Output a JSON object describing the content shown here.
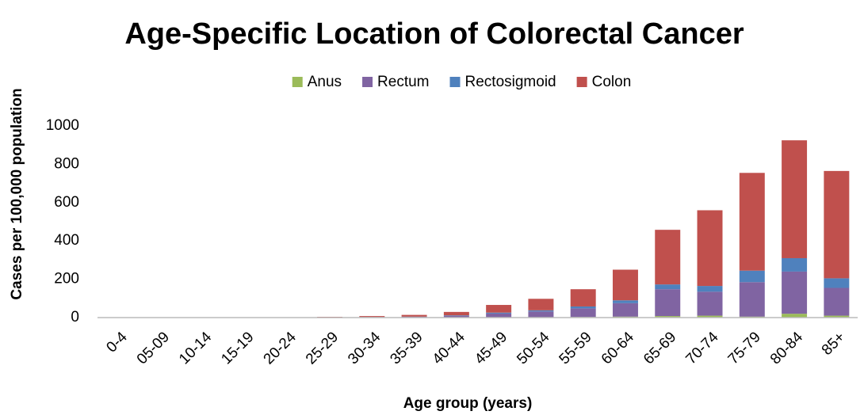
{
  "chart_data": {
    "type": "stacked_bar",
    "title": "Age-Specific Location of Colorectal Cancer",
    "x_label": "Age group (years)",
    "y_label": "Cases per 100,000 population",
    "categories": [
      "0-4",
      "05-09",
      "10-14",
      "15-19",
      "20-24",
      "25-29",
      "30-34",
      "35-39",
      "40-44",
      "45-49",
      "50-54",
      "55-59",
      "60-64",
      "65-69",
      "70-74",
      "75-79",
      "80-84",
      "85+"
    ],
    "series": [
      {
        "name": "Anus",
        "color": "#9bbb59",
        "values": [
          0,
          0,
          0,
          0,
          0,
          0,
          0,
          0,
          0.5,
          1,
          2,
          3,
          5,
          8,
          10,
          5,
          20,
          10
        ]
      },
      {
        "name": "Rectum",
        "color": "#8064a2",
        "values": [
          0,
          0,
          0,
          0,
          0.5,
          1,
          2,
          4,
          8,
          20,
          30,
          45,
          70,
          140,
          125,
          180,
          220,
          145
        ]
      },
      {
        "name": "Rectosigmoid",
        "color": "#4f81bd",
        "values": [
          0,
          0,
          0,
          0,
          0,
          0.5,
          1,
          1,
          3,
          5,
          6,
          10,
          15,
          25,
          30,
          60,
          70,
          50
        ]
      },
      {
        "name": "Colon",
        "color": "#c0504d",
        "values": [
          0,
          0,
          0.5,
          1,
          1.5,
          2.5,
          5,
          9,
          18,
          40,
          60,
          90,
          160,
          285,
          395,
          510,
          615,
          560
        ]
      }
    ],
    "ylim": [
      0,
      1000
    ],
    "yticks": [
      0,
      200,
      400,
      600,
      800,
      1000
    ],
    "legend": "top",
    "grid": false
  }
}
